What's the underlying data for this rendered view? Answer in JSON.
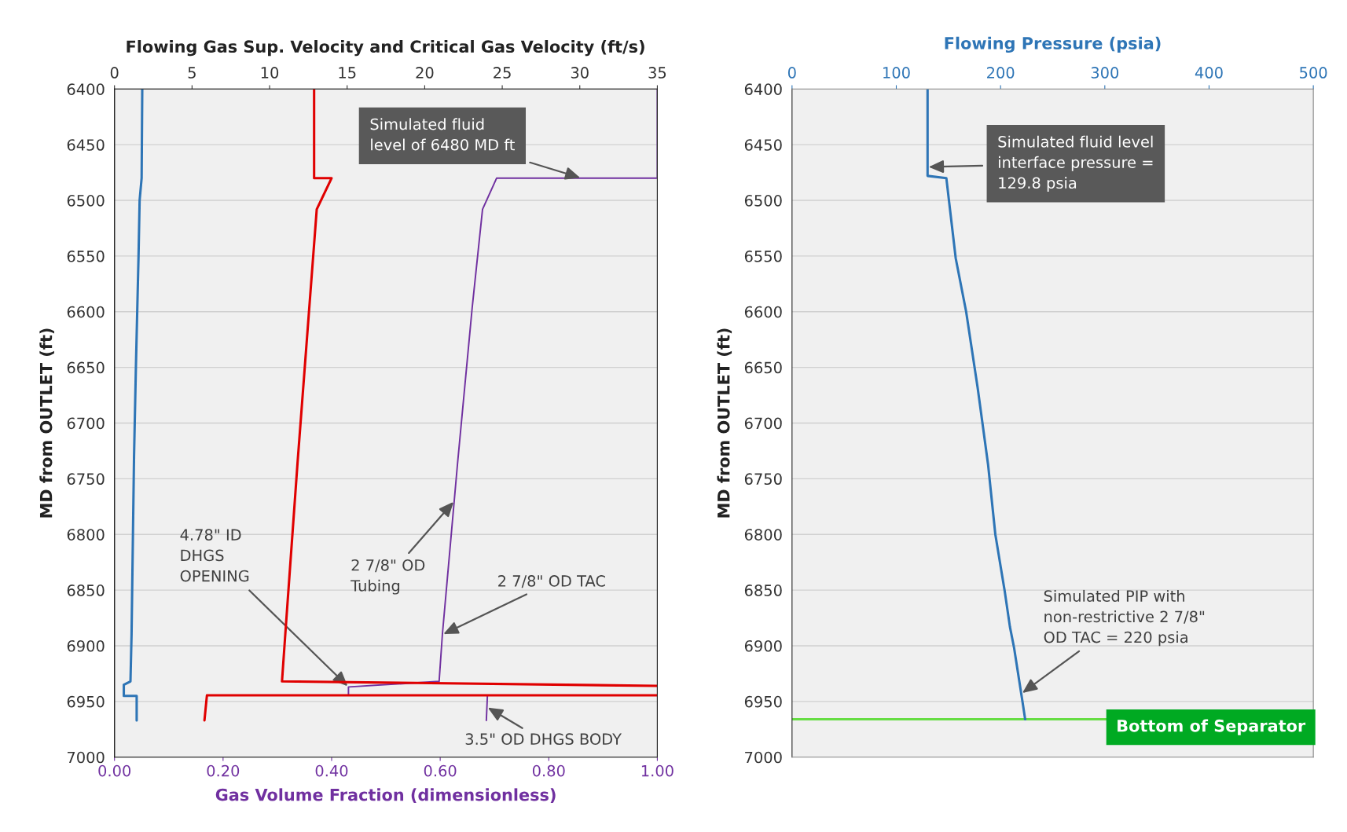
{
  "chart_data": [
    {
      "type": "line",
      "x2label": "Flowing Gas Sup. Velocity and Critical Gas Velocity (ft/s)",
      "xlabel": "Gas Volume Fraction (dimensionless)",
      "ylabel": "MD from OUTLET (ft)",
      "xlim": [
        0,
        1
      ],
      "xticks": [
        {
          "value": 0,
          "label": "0.00"
        },
        {
          "value": 0.2,
          "label": "0.20"
        },
        {
          "value": 0.4,
          "label": "0.40"
        },
        {
          "value": 0.6,
          "label": "0.60"
        },
        {
          "value": 0.8,
          "label": "0.80"
        },
        {
          "value": 1,
          "label": "1.00"
        }
      ],
      "x2lim": [
        0,
        35
      ],
      "x2ticks": [
        0,
        5,
        10,
        15,
        20,
        25,
        30,
        35
      ],
      "ylim": [
        7000,
        6400
      ],
      "yticks": [
        6400,
        6450,
        6500,
        6550,
        6600,
        6650,
        6700,
        6750,
        6800,
        6850,
        6900,
        6950,
        7000
      ],
      "grid": "y",
      "series": [
        {
          "color": "#2e75b6",
          "axis": "x2",
          "x": [
            1.79,
            1.75,
            1.62,
            1.55,
            1.38,
            1.26,
            1.19,
            1.1,
            1.03,
            0.6,
            0.6,
            1.43,
            1.43
          ],
          "values": [
            6400,
            6480,
            6500,
            6550,
            6650,
            6730,
            6800,
            6890,
            6932,
            6935,
            6945,
            6945,
            6967
          ]
        },
        {
          "color": "#e00000",
          "axis": "x2",
          "x": [
            12.87,
            12.87,
            14.0,
            13.04,
            11.8,
            11.01,
            10.8,
            35,
            null,
            35,
            5.96,
            5.8
          ],
          "values": [
            6400,
            6480,
            6480,
            6508,
            6736,
            6890,
            6932,
            6936,
            null,
            6944.5,
            6944.5,
            6967
          ]
        },
        {
          "color": "#7030a0",
          "x": [
            1.0,
            1.0,
            0.704,
            0.678,
            0.659,
            0.632,
            0.604,
            0.598,
            0.431,
            0.431,
            0.687,
            0.685
          ],
          "values": [
            6400,
            6480,
            6480,
            6508,
            6596,
            6736,
            6890,
            6932,
            6937,
            6944.5,
            6944.5,
            6967
          ]
        }
      ],
      "annotations": [
        {
          "text": "Simulated fluid\nlevel of 6480 MD ft",
          "x": 0.86,
          "y": 6480
        },
        {
          "text": "4.78\" ID\nDHGS\nOPENING",
          "x": 0.431,
          "y": 6937
        },
        {
          "text": "2 7/8\" OD\nTubing",
          "x": 0.626,
          "y": 6770
        },
        {
          "text": "2 7/8\" OD TAC",
          "x": 0.604,
          "y": 6890
        },
        {
          "text": "3.5\" OD DHGS BODY",
          "x": 0.686,
          "y": 6955
        }
      ]
    },
    {
      "type": "line",
      "xlabel": "Flowing Pressure (psia)",
      "ylabel": "MD from OUTLET (ft)",
      "xlim": [
        0,
        500
      ],
      "xticks": [
        0,
        100,
        200,
        300,
        400,
        500
      ],
      "ylim": [
        7000,
        6400
      ],
      "yticks": [
        6400,
        6450,
        6500,
        6550,
        6600,
        6650,
        6700,
        6750,
        6800,
        6850,
        6900,
        6950,
        7000
      ],
      "grid": "y",
      "series": [
        {
          "color": "#2e75b6",
          "x": [
            130,
            130,
            148,
            157,
            167,
            178,
            188,
            195,
            204,
            209,
            213,
            221,
            223.6
          ],
          "values": [
            6400,
            6478,
            6480,
            6552,
            6600,
            6668,
            6737,
            6800,
            6851,
            6883,
            6902,
            6950,
            6966
          ]
        }
      ],
      "ref_lines": [
        {
          "axis": "y",
          "value": 6966,
          "label": "Bottom of Separator",
          "color": "#66dd44"
        }
      ],
      "annotations": [
        {
          "text": "Simulated fluid level\ninterface pressure =\n129.8 psia",
          "x": 130,
          "y": 6470
        },
        {
          "text": "Simulated PIP with\nnon-restrictive 2 7/8\"\nOD TAC = 220 psia",
          "x": 220,
          "y": 6943
        }
      ]
    }
  ]
}
